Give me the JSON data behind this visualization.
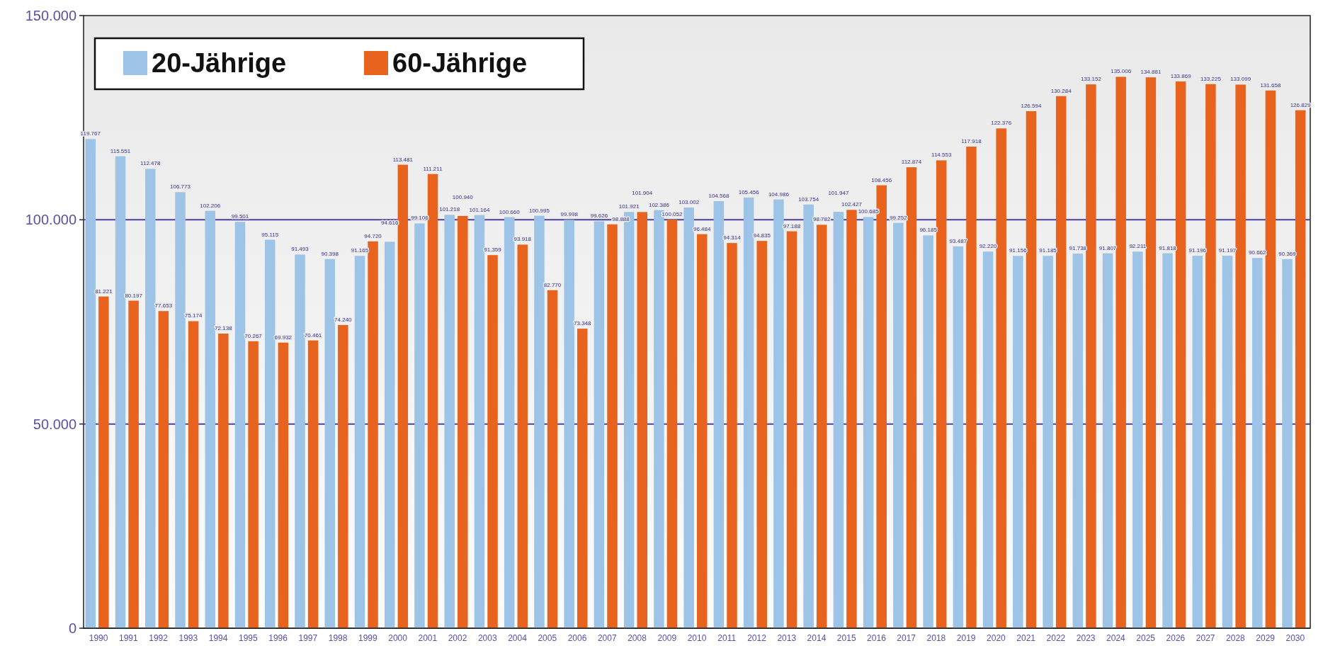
{
  "chart_data": {
    "type": "bar",
    "categories": [
      "1990",
      "1991",
      "1992",
      "1993",
      "1994",
      "1995",
      "1996",
      "1997",
      "1998",
      "1999",
      "2000",
      "2001",
      "2002",
      "2003",
      "2004",
      "2005",
      "2006",
      "2007",
      "2008",
      "2009",
      "2010",
      "2011",
      "2012",
      "2013",
      "2014",
      "2015",
      "2016",
      "2017",
      "2018",
      "2019",
      "2020",
      "2021",
      "2022",
      "2023",
      "2024",
      "2025",
      "2026",
      "2027",
      "2028",
      "2029",
      "2030"
    ],
    "series": [
      {
        "name": "20-Jährige",
        "color": "#9dc3e6",
        "values": [
          119767,
          115551,
          112478,
          106773,
          102206,
          99501,
          95115,
          91493,
          90398,
          91165,
          94616,
          99106,
          101218,
          101164,
          100660,
          100995,
          99998,
          99626,
          101921,
          102386,
          103002,
          104568,
          105456,
          104986,
          103754,
          101947,
          100685,
          99252,
          96185,
          93487,
          92220,
          91156,
          91185,
          91738,
          91807,
          92211,
          91818,
          91196,
          91197,
          90662,
          90369
        ],
        "value_labels": [
          "119.767",
          "115.551",
          "112.478",
          "106.773",
          "102.206",
          "99.501",
          "95.115",
          "91.493",
          "90.398",
          "91.165",
          "94.616",
          "99.106",
          "101.218",
          "101.164",
          "100.660",
          "100.995",
          "99.998",
          "99.626",
          "101.921",
          "102.386",
          "103.002",
          "104.568",
          "105.456",
          "104.986",
          "103.754",
          "101.947",
          "100.685",
          "99.252",
          "96.185",
          "93.487",
          "92.220",
          "91.156",
          "91.185",
          "91.738",
          "91.807",
          "92.211",
          "91.818",
          "91.196",
          "91.197",
          "90.662",
          "90.369"
        ]
      },
      {
        "name": "60-Jährige",
        "color": "#e8641e",
        "values": [
          81221,
          80197,
          77653,
          75174,
          72138,
          70267,
          69932,
          70461,
          74240,
          94720,
          113481,
          111211,
          100940,
          91359,
          93918,
          82770,
          73348,
          98888,
          101904,
          100052,
          96484,
          94314,
          94835,
          97188,
          98782,
          102427,
          108456,
          112874,
          114553,
          117918,
          122376,
          126594,
          130284,
          133152,
          135006,
          134881,
          133869,
          133225,
          133099,
          131658,
          126829
        ],
        "value_labels": [
          "81.221",
          "80.197",
          "77.653",
          "75.174",
          "72.138",
          "70.267",
          "69.932",
          "70.461",
          "74.240",
          "94.720",
          "113.481",
          "111.211",
          "100.940",
          "91.359",
          "93.918",
          "82.770",
          "73.348",
          "98.888",
          "101.904",
          "100.052",
          "96.484",
          "94.314",
          "94.835",
          "97.188",
          "98.782",
          "102.427",
          "108.456",
          "112.874",
          "114.553",
          "117.918",
          "122.376",
          "126.594",
          "130.284",
          "133.152",
          "135.006",
          "134.881",
          "133.869",
          "133.225",
          "133.099",
          "131.658",
          "126.829"
        ]
      }
    ],
    "ylim": [
      0,
      150000
    ],
    "yticks": [
      {
        "value": 0,
        "label": "0"
      },
      {
        "value": 50000,
        "label": "50.000"
      },
      {
        "value": 100000,
        "label": "100.000"
      },
      {
        "value": 150000,
        "label": "150.000"
      }
    ],
    "grid": "y",
    "legend": "top left"
  }
}
